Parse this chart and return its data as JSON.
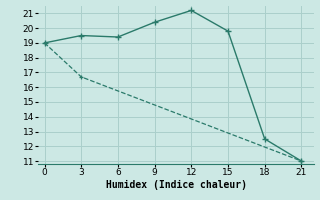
{
  "xlabel": "Humidex (Indice chaleur)",
  "x_ticks": [
    0,
    3,
    6,
    9,
    12,
    15,
    18,
    21
  ],
  "xlim": [
    -0.5,
    22
  ],
  "ylim": [
    10.8,
    21.5
  ],
  "yticks": [
    11,
    12,
    13,
    14,
    15,
    16,
    17,
    18,
    19,
    20,
    21
  ],
  "line1_x": [
    0,
    3,
    6,
    9,
    12,
    15,
    18,
    21
  ],
  "line1_y": [
    19.0,
    19.5,
    19.4,
    20.4,
    21.2,
    19.8,
    12.5,
    11.0
  ],
  "line2_x": [
    0,
    3,
    21
  ],
  "line2_y": [
    19.0,
    16.7,
    11.0
  ],
  "line_color": "#2a7a6a",
  "bg_color": "#cce8e4",
  "grid_color": "#aacfcb",
  "axis_fontsize": 7,
  "tick_fontsize": 6.5
}
